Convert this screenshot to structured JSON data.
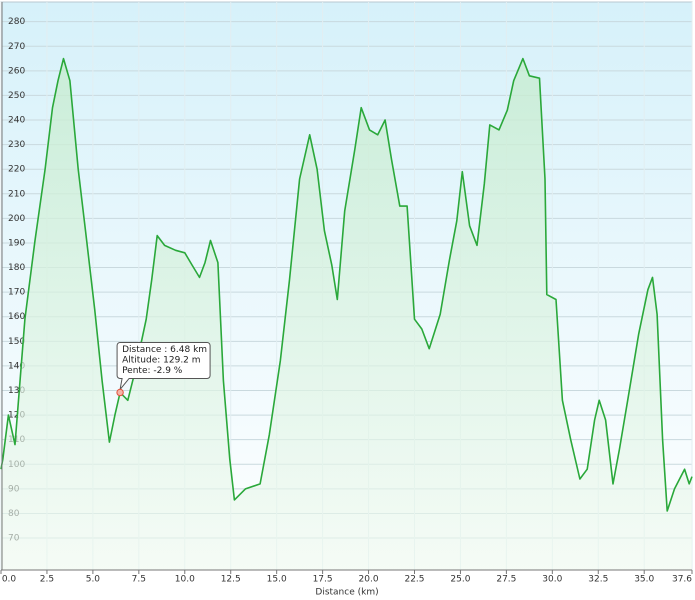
{
  "chart_data": {
    "type": "line",
    "x_label": "Distance  (km)",
    "xlim": [
      0,
      37.6
    ],
    "ylim": [
      57,
      288
    ],
    "xticks": [
      {
        "value": 0,
        "label": "0.0"
      },
      2.5,
      {
        "value": 5,
        "label": "5.0"
      },
      7.5,
      {
        "value": 10,
        "label": "10.0"
      },
      12.5,
      {
        "value": 15,
        "label": "15.0"
      },
      17.5,
      {
        "value": 20,
        "label": "20.0"
      },
      22.5,
      {
        "value": 25,
        "label": "25.0"
      },
      27.5,
      {
        "value": 30,
        "label": "30.0"
      },
      32.5,
      {
        "value": 35,
        "label": "35.0"
      },
      37.6
    ],
    "yticks": [
      70,
      80,
      90,
      100,
      110,
      120,
      130,
      140,
      150,
      160,
      170,
      180,
      190,
      200,
      210,
      220,
      230,
      240,
      250,
      260,
      270,
      280
    ],
    "grid": true,
    "series": [
      {
        "name": "Altitude",
        "color": "#2aa83a",
        "x": [
          0,
          0.1,
          0.4,
          0.76,
          1.3,
          1.85,
          2.4,
          2.8,
          3.1,
          3.4,
          3.75,
          4.2,
          4.6,
          5.1,
          5.5,
          5.9,
          6.2,
          6.48,
          6.9,
          7.3,
          7.9,
          8.2,
          8.5,
          8.9,
          9.5,
          10.0,
          10.4,
          10.8,
          11.1,
          11.4,
          11.8,
          12.1,
          12.45,
          12.7,
          13.3,
          14.1,
          14.6,
          15.2,
          15.7,
          16.25,
          16.8,
          17.2,
          17.6,
          18.0,
          18.3,
          18.7,
          19.25,
          19.6,
          20.05,
          20.5,
          20.9,
          21.25,
          21.7,
          22.1,
          22.5,
          22.9,
          23.3,
          23.9,
          24.4,
          24.8,
          25.1,
          25.5,
          25.9,
          26.3,
          26.6,
          27.1,
          27.55,
          27.9,
          28.4,
          28.75,
          29.3,
          29.6,
          29.7,
          30.2,
          30.55,
          31.0,
          31.5,
          31.9,
          32.3,
          32.55,
          32.9,
          33.3,
          33.65,
          34.1,
          34.7,
          35.2,
          35.45,
          35.7,
          36.0,
          36.25,
          36.65,
          37.2,
          37.45,
          37.6
        ],
        "values": [
          98,
          102,
          120,
          108,
          159,
          191,
          220,
          245,
          256,
          265,
          256,
          220,
          195,
          163,
          134,
          109,
          120,
          129.2,
          126,
          138,
          159,
          175,
          193,
          189,
          187,
          186,
          181,
          176,
          182,
          191,
          182,
          134,
          102,
          85.5,
          90,
          92,
          112,
          142,
          175,
          216,
          234,
          220,
          195,
          181,
          167,
          203,
          228,
          245,
          236,
          234,
          240,
          224,
          205,
          205,
          159,
          155,
          147,
          161,
          183,
          199,
          219,
          197,
          189,
          214,
          238,
          236,
          244,
          256,
          265,
          258,
          257,
          216,
          169,
          167,
          126,
          110,
          94,
          98,
          118,
          126,
          118,
          92,
          106,
          126,
          153,
          171,
          176,
          161,
          110,
          81,
          90,
          98,
          92,
          95
        ]
      }
    ],
    "tooltip": {
      "x": 6.48,
      "y": 129.2,
      "lines": [
        "Distance : 6.48 km",
        "Altitude: 129.2 m",
        "Pente: -2.9 %"
      ]
    }
  }
}
